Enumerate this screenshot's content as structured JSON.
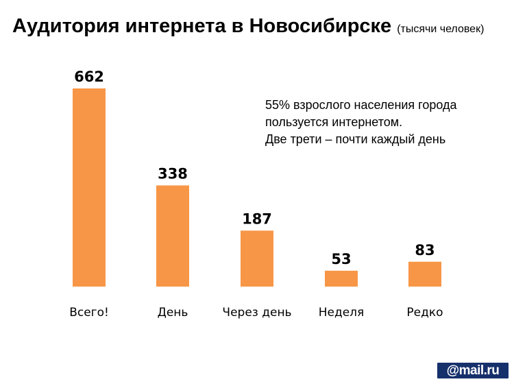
{
  "slide": {
    "title": "Аудитория интернета в Новосибирске",
    "subtitle": "(тысячи человек)",
    "annotation": [
      "55% взрослого населения города",
      "пользуется интернетом.",
      "Две трети – почти каждый день"
    ],
    "logo": "@mail.ru"
  },
  "chart_data": {
    "type": "bar",
    "categories": [
      "Всего!",
      "День",
      "Через день",
      "Неделя",
      "Редко"
    ],
    "values": [
      662,
      338,
      187,
      53,
      83
    ],
    "data_labels": [
      "662",
      "338",
      "187",
      "53",
      "83"
    ],
    "title": "Аудитория интернета в Новосибирске",
    "xlabel": "",
    "ylabel": "",
    "ylim": [
      0,
      662
    ],
    "grid": false,
    "legend": "none",
    "bar_color": "#f79646"
  }
}
